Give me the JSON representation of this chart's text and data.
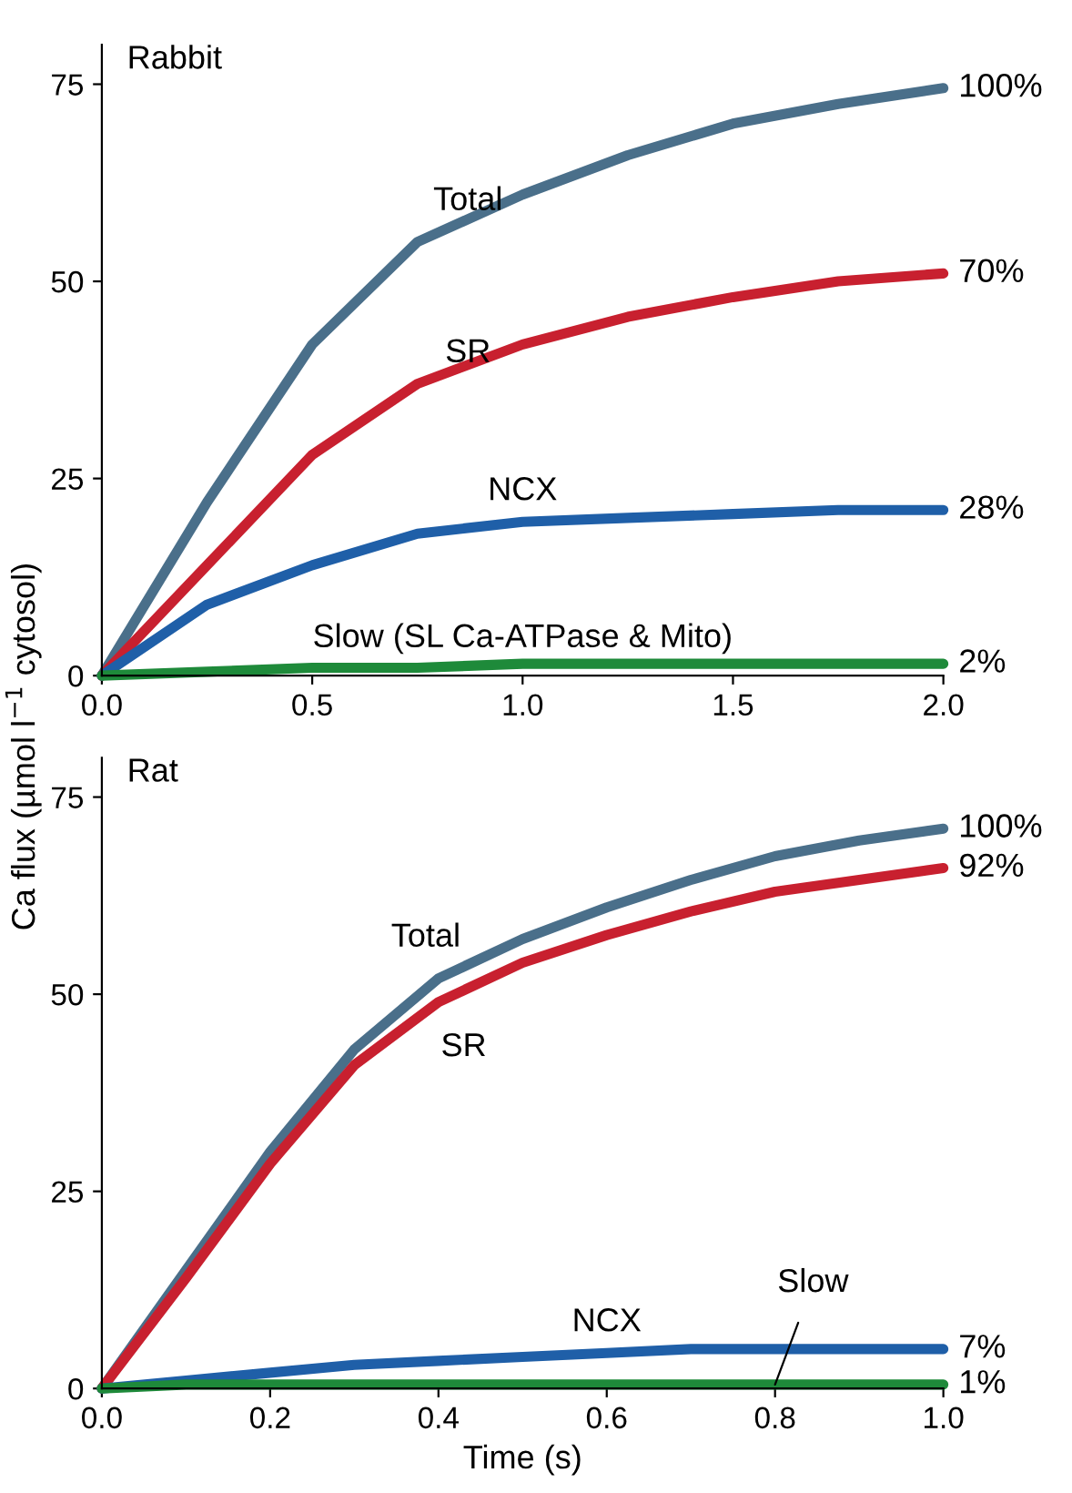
{
  "chart_data": [
    {
      "type": "line",
      "title": "Rabbit",
      "ylabel": "Ca flux (µmol l$^{−1}$ cytosol)",
      "x": [
        0,
        0.25,
        0.5,
        0.75,
        1.0,
        1.25,
        1.5,
        1.75,
        2.0
      ],
      "series": [
        {
          "name": "Total",
          "color": "#4a6f8a",
          "values": [
            0,
            22,
            42,
            55,
            61,
            66,
            70,
            72.5,
            74.5
          ]
        },
        {
          "name": "SR",
          "color": "#c8202f",
          "values": [
            0,
            14,
            28,
            37,
            42,
            45.5,
            48,
            50,
            51
          ]
        },
        {
          "name": "NCX",
          "color": "#1f5fa8",
          "values": [
            0,
            9,
            14,
            18,
            19.5,
            20,
            20.5,
            21,
            21
          ]
        },
        {
          "name": "Slow (SL Ca-ATPase & Mito)",
          "color": "#1e8a3a",
          "values": [
            0,
            0.5,
            1,
            1,
            1.5,
            1.5,
            1.5,
            1.5,
            1.5
          ]
        }
      ],
      "annotations": [
        "100%",
        "70%",
        "28%",
        "2%"
      ],
      "xlim": [
        0,
        2
      ],
      "ylim": [
        0,
        80
      ],
      "xticks": [
        {
          "value": 0,
          "label": "0.0"
        },
        {
          "value": 0.5,
          "label": "0.5"
        },
        {
          "value": 1,
          "label": "1.0"
        },
        {
          "value": 1.5,
          "label": "1.5"
        },
        {
          "value": 2,
          "label": "2.0"
        }
      ],
      "yticks": [
        0,
        25,
        50,
        75
      ],
      "grid": false,
      "legend": false
    },
    {
      "type": "line",
      "title": "Rat",
      "xlabel": "Time (s)",
      "x": [
        0,
        0.1,
        0.2,
        0.3,
        0.4,
        0.5,
        0.6,
        0.7,
        0.8,
        0.9,
        1.0
      ],
      "series": [
        {
          "name": "Total",
          "color": "#4a6f8a",
          "values": [
            0,
            15,
            30,
            43,
            52,
            57,
            61,
            64.5,
            67.5,
            69.5,
            71
          ]
        },
        {
          "name": "SR",
          "color": "#c8202f",
          "values": [
            0,
            14,
            28.5,
            41,
            49,
            54,
            57.5,
            60.5,
            63,
            64.5,
            66
          ]
        },
        {
          "name": "NCX",
          "color": "#1f5fa8",
          "values": [
            0,
            1,
            2,
            3,
            3.5,
            4,
            4.5,
            5,
            5,
            5,
            5
          ]
        },
        {
          "name": "Slow",
          "color": "#1e8a3a",
          "values": [
            0,
            0.5,
            0.5,
            0.5,
            0.5,
            0.5,
            0.5,
            0.5,
            0.5,
            0.5,
            0.5
          ]
        }
      ],
      "annotations": [
        "100%",
        "92%",
        "7%",
        "1%"
      ],
      "xlim": [
        0,
        1
      ],
      "ylim": [
        0,
        80
      ],
      "xticks": [
        {
          "value": 0,
          "label": "0.0"
        },
        {
          "value": 0.2,
          "label": "0.2"
        },
        {
          "value": 0.4,
          "label": "0.4"
        },
        {
          "value": 0.6,
          "label": "0.6"
        },
        {
          "value": 0.8,
          "label": "0.8"
        },
        {
          "value": 1,
          "label": "1.0"
        }
      ],
      "yticks": [
        0,
        25,
        50,
        75
      ],
      "grid": false,
      "legend": false
    }
  ]
}
